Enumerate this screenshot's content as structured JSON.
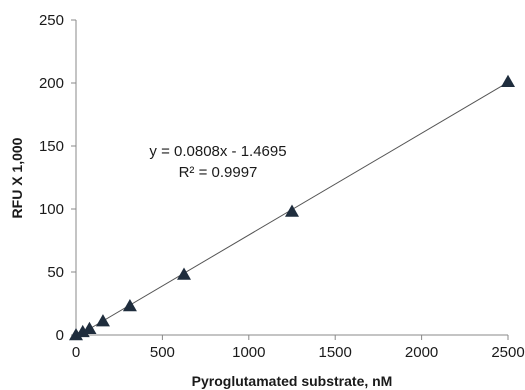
{
  "chart_data": {
    "type": "scatter",
    "title": "",
    "xlabel": "Pyroglutamated substrate, nM",
    "ylabel": "RFU X 1,000",
    "xlim": [
      0,
      2500
    ],
    "ylim": [
      0,
      250
    ],
    "x_ticks": [
      0,
      500,
      1000,
      1500,
      2000,
      2500
    ],
    "y_ticks": [
      0,
      50,
      100,
      150,
      200,
      250
    ],
    "grid": false,
    "legend": "none",
    "marker": "triangle",
    "marker_color": "#1f2d3d",
    "trendline": {
      "type": "linear",
      "slope": 0.0808,
      "intercept": -1.4695,
      "color": "#555555"
    },
    "annotations": [
      "y = 0.0808x - 1.4695",
      "R² = 0.9997"
    ],
    "series": [
      {
        "points": [
          {
            "x": 0,
            "y": 0
          },
          {
            "x": 39,
            "y": 2.5
          },
          {
            "x": 78,
            "y": 5
          },
          {
            "x": 156,
            "y": 11
          },
          {
            "x": 312,
            "y": 23
          },
          {
            "x": 625,
            "y": 48
          },
          {
            "x": 1250,
            "y": 98
          },
          {
            "x": 2500,
            "y": 201
          }
        ]
      }
    ]
  }
}
